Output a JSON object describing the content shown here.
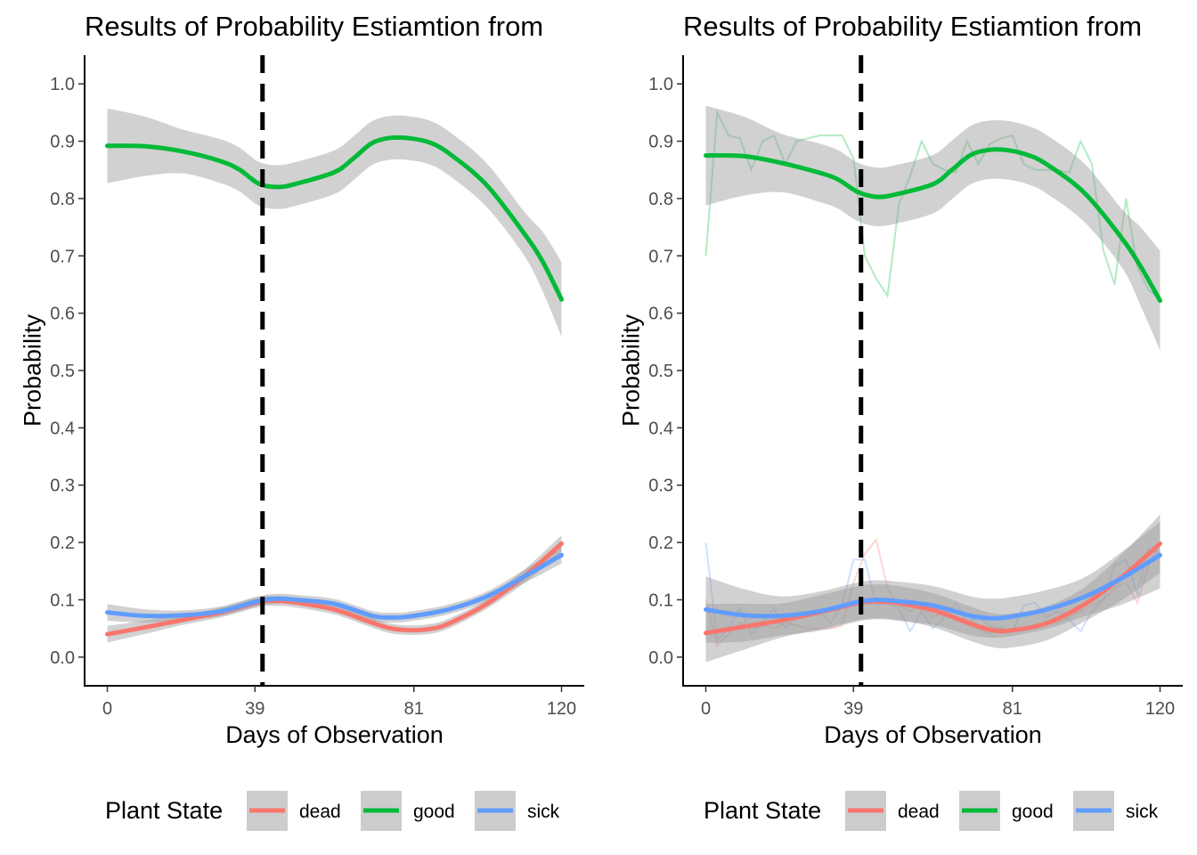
{
  "chart_data": [
    {
      "type": "line",
      "title": "Results of Probability Estiamtion from",
      "xlabel": "Days of Observation",
      "ylabel": "Probability",
      "xlim": [
        -6,
        126
      ],
      "ylim": [
        -0.05,
        1.05
      ],
      "x_ticks": [
        0,
        39,
        81,
        120
      ],
      "y_ticks": [
        0.0,
        0.1,
        0.2,
        0.3,
        0.4,
        0.5,
        0.6,
        0.7,
        0.8,
        0.9,
        1.0
      ],
      "y_tick_labels": [
        "0.0",
        "0.1",
        "0.2",
        "0.3",
        "0.4",
        "0.5",
        "0.6",
        "0.7",
        "0.8",
        "0.9",
        "1.0"
      ],
      "vline_x": 41,
      "show_raw": false,
      "legend": {
        "title": "Plant State",
        "position": "bottom"
      },
      "series": [
        {
          "name": "dead",
          "color": "#F8766D",
          "x": [
            0,
            10,
            20,
            30,
            40,
            45,
            50,
            60,
            70,
            75,
            80,
            85,
            90,
            100,
            110,
            120
          ],
          "smooth": [
            0.04,
            0.052,
            0.065,
            0.078,
            0.096,
            0.098,
            0.095,
            0.083,
            0.06,
            0.05,
            0.047,
            0.049,
            0.058,
            0.092,
            0.14,
            0.198
          ],
          "band": 0.01
        },
        {
          "name": "good",
          "color": "#00BA38",
          "x": [
            0,
            10,
            20,
            30,
            35,
            40,
            45,
            50,
            60,
            65,
            70,
            75,
            80,
            85,
            90,
            100,
            110,
            115,
            120
          ],
          "smooth": [
            0.892,
            0.891,
            0.882,
            0.865,
            0.85,
            0.826,
            0.82,
            0.826,
            0.846,
            0.87,
            0.897,
            0.906,
            0.905,
            0.898,
            0.88,
            0.825,
            0.74,
            0.69,
            0.624
          ],
          "band": 0.045
        },
        {
          "name": "sick",
          "color": "#619CFF",
          "x": [
            0,
            10,
            20,
            30,
            40,
            45,
            50,
            60,
            70,
            75,
            80,
            90,
            100,
            110,
            120
          ],
          "smooth": [
            0.078,
            0.072,
            0.073,
            0.08,
            0.098,
            0.102,
            0.1,
            0.093,
            0.072,
            0.069,
            0.071,
            0.083,
            0.105,
            0.14,
            0.178
          ],
          "band": 0.01
        }
      ]
    },
    {
      "type": "line",
      "title": "Results of Probability Estiamtion from",
      "xlabel": "Days of Observation",
      "ylabel": "Probability",
      "xlim": [
        -6,
        126
      ],
      "ylim": [
        -0.05,
        1.05
      ],
      "x_ticks": [
        0,
        39,
        81,
        120
      ],
      "y_ticks": [
        0.0,
        0.1,
        0.2,
        0.3,
        0.4,
        0.5,
        0.6,
        0.7,
        0.8,
        0.9,
        1.0
      ],
      "y_tick_labels": [
        "0.0",
        "0.1",
        "0.2",
        "0.3",
        "0.4",
        "0.5",
        "0.6",
        "0.7",
        "0.8",
        "0.9",
        "1.0"
      ],
      "vline_x": 41,
      "show_raw": true,
      "legend": {
        "title": "Plant State",
        "position": "bottom"
      },
      "series": [
        {
          "name": "dead",
          "color": "#F8766D",
          "x": [
            0,
            10,
            20,
            30,
            40,
            45,
            50,
            60,
            70,
            75,
            80,
            90,
            100,
            110,
            120
          ],
          "smooth": [
            0.042,
            0.053,
            0.064,
            0.078,
            0.094,
            0.097,
            0.095,
            0.082,
            0.058,
            0.048,
            0.046,
            0.059,
            0.092,
            0.14,
            0.198
          ],
          "band": 0.035,
          "raw_x": [
            0,
            3,
            6,
            9,
            12,
            15,
            18,
            21,
            24,
            27,
            30,
            33,
            36,
            39,
            42,
            45,
            48,
            51,
            54,
            57,
            60,
            63,
            66,
            69,
            72,
            75,
            78,
            81,
            84,
            87,
            90,
            93,
            96,
            99,
            102,
            105,
            108,
            111,
            114,
            117,
            120
          ],
          "raw": [
            0.1,
            0.02,
            0.04,
            0.06,
            0.05,
            0.055,
            0.05,
            0.06,
            0.055,
            0.05,
            0.05,
            0.05,
            0.055,
            0.13,
            0.18,
            0.205,
            0.12,
            0.09,
            0.08,
            0.09,
            0.07,
            0.08,
            0.07,
            0.06,
            0.05,
            0.04,
            0.05,
            0.045,
            0.05,
            0.05,
            0.06,
            0.06,
            0.07,
            0.08,
            0.09,
            0.1,
            0.12,
            0.13,
            0.095,
            0.16,
            0.2
          ]
        },
        {
          "name": "good",
          "color": "#00BA38",
          "x": [
            0,
            10,
            20,
            30,
            35,
            40,
            45,
            50,
            60,
            65,
            70,
            75,
            80,
            85,
            90,
            100,
            110,
            115,
            120
          ],
          "smooth": [
            0.875,
            0.874,
            0.862,
            0.845,
            0.833,
            0.812,
            0.803,
            0.807,
            0.825,
            0.85,
            0.876,
            0.885,
            0.884,
            0.876,
            0.86,
            0.81,
            0.73,
            0.68,
            0.622
          ],
          "band": 0.06,
          "raw_x": [
            0,
            3,
            6,
            9,
            12,
            15,
            18,
            21,
            24,
            27,
            30,
            33,
            36,
            39,
            42,
            45,
            48,
            51,
            54,
            57,
            60,
            63,
            66,
            69,
            72,
            75,
            78,
            81,
            84,
            87,
            90,
            93,
            96,
            99,
            102,
            105,
            108,
            111,
            114,
            117,
            120
          ],
          "raw": [
            0.7,
            0.95,
            0.91,
            0.905,
            0.85,
            0.9,
            0.91,
            0.86,
            0.9,
            0.905,
            0.91,
            0.91,
            0.91,
            0.87,
            0.7,
            0.66,
            0.63,
            0.79,
            0.84,
            0.9,
            0.86,
            0.85,
            0.845,
            0.9,
            0.86,
            0.895,
            0.905,
            0.91,
            0.86,
            0.85,
            0.85,
            0.85,
            0.845,
            0.9,
            0.86,
            0.71,
            0.65,
            0.8,
            0.68,
            0.64,
            0.625
          ]
        },
        {
          "name": "sick",
          "color": "#619CFF",
          "x": [
            0,
            10,
            20,
            30,
            40,
            45,
            50,
            60,
            70,
            75,
            80,
            90,
            100,
            110,
            120
          ],
          "smooth": [
            0.083,
            0.073,
            0.072,
            0.08,
            0.096,
            0.1,
            0.098,
            0.09,
            0.072,
            0.068,
            0.07,
            0.083,
            0.105,
            0.138,
            0.178
          ],
          "band": 0.04,
          "raw_x": [
            0,
            3,
            6,
            9,
            12,
            15,
            18,
            21,
            24,
            27,
            30,
            33,
            36,
            39,
            42,
            45,
            48,
            51,
            54,
            57,
            60,
            63,
            66,
            69,
            72,
            75,
            78,
            81,
            84,
            87,
            90,
            93,
            96,
            99,
            102,
            105,
            108,
            111,
            114,
            117,
            120
          ],
          "raw": [
            0.2,
            0.03,
            0.05,
            0.085,
            0.04,
            0.06,
            0.085,
            0.05,
            0.07,
            0.075,
            0.08,
            0.06,
            0.09,
            0.17,
            0.17,
            0.09,
            0.095,
            0.085,
            0.045,
            0.08,
            0.05,
            0.07,
            0.095,
            0.06,
            0.07,
            0.055,
            0.05,
            0.045,
            0.09,
            0.095,
            0.07,
            0.08,
            0.065,
            0.045,
            0.08,
            0.1,
            0.16,
            0.17,
            0.11,
            0.19,
            0.18
          ]
        }
      ]
    }
  ]
}
